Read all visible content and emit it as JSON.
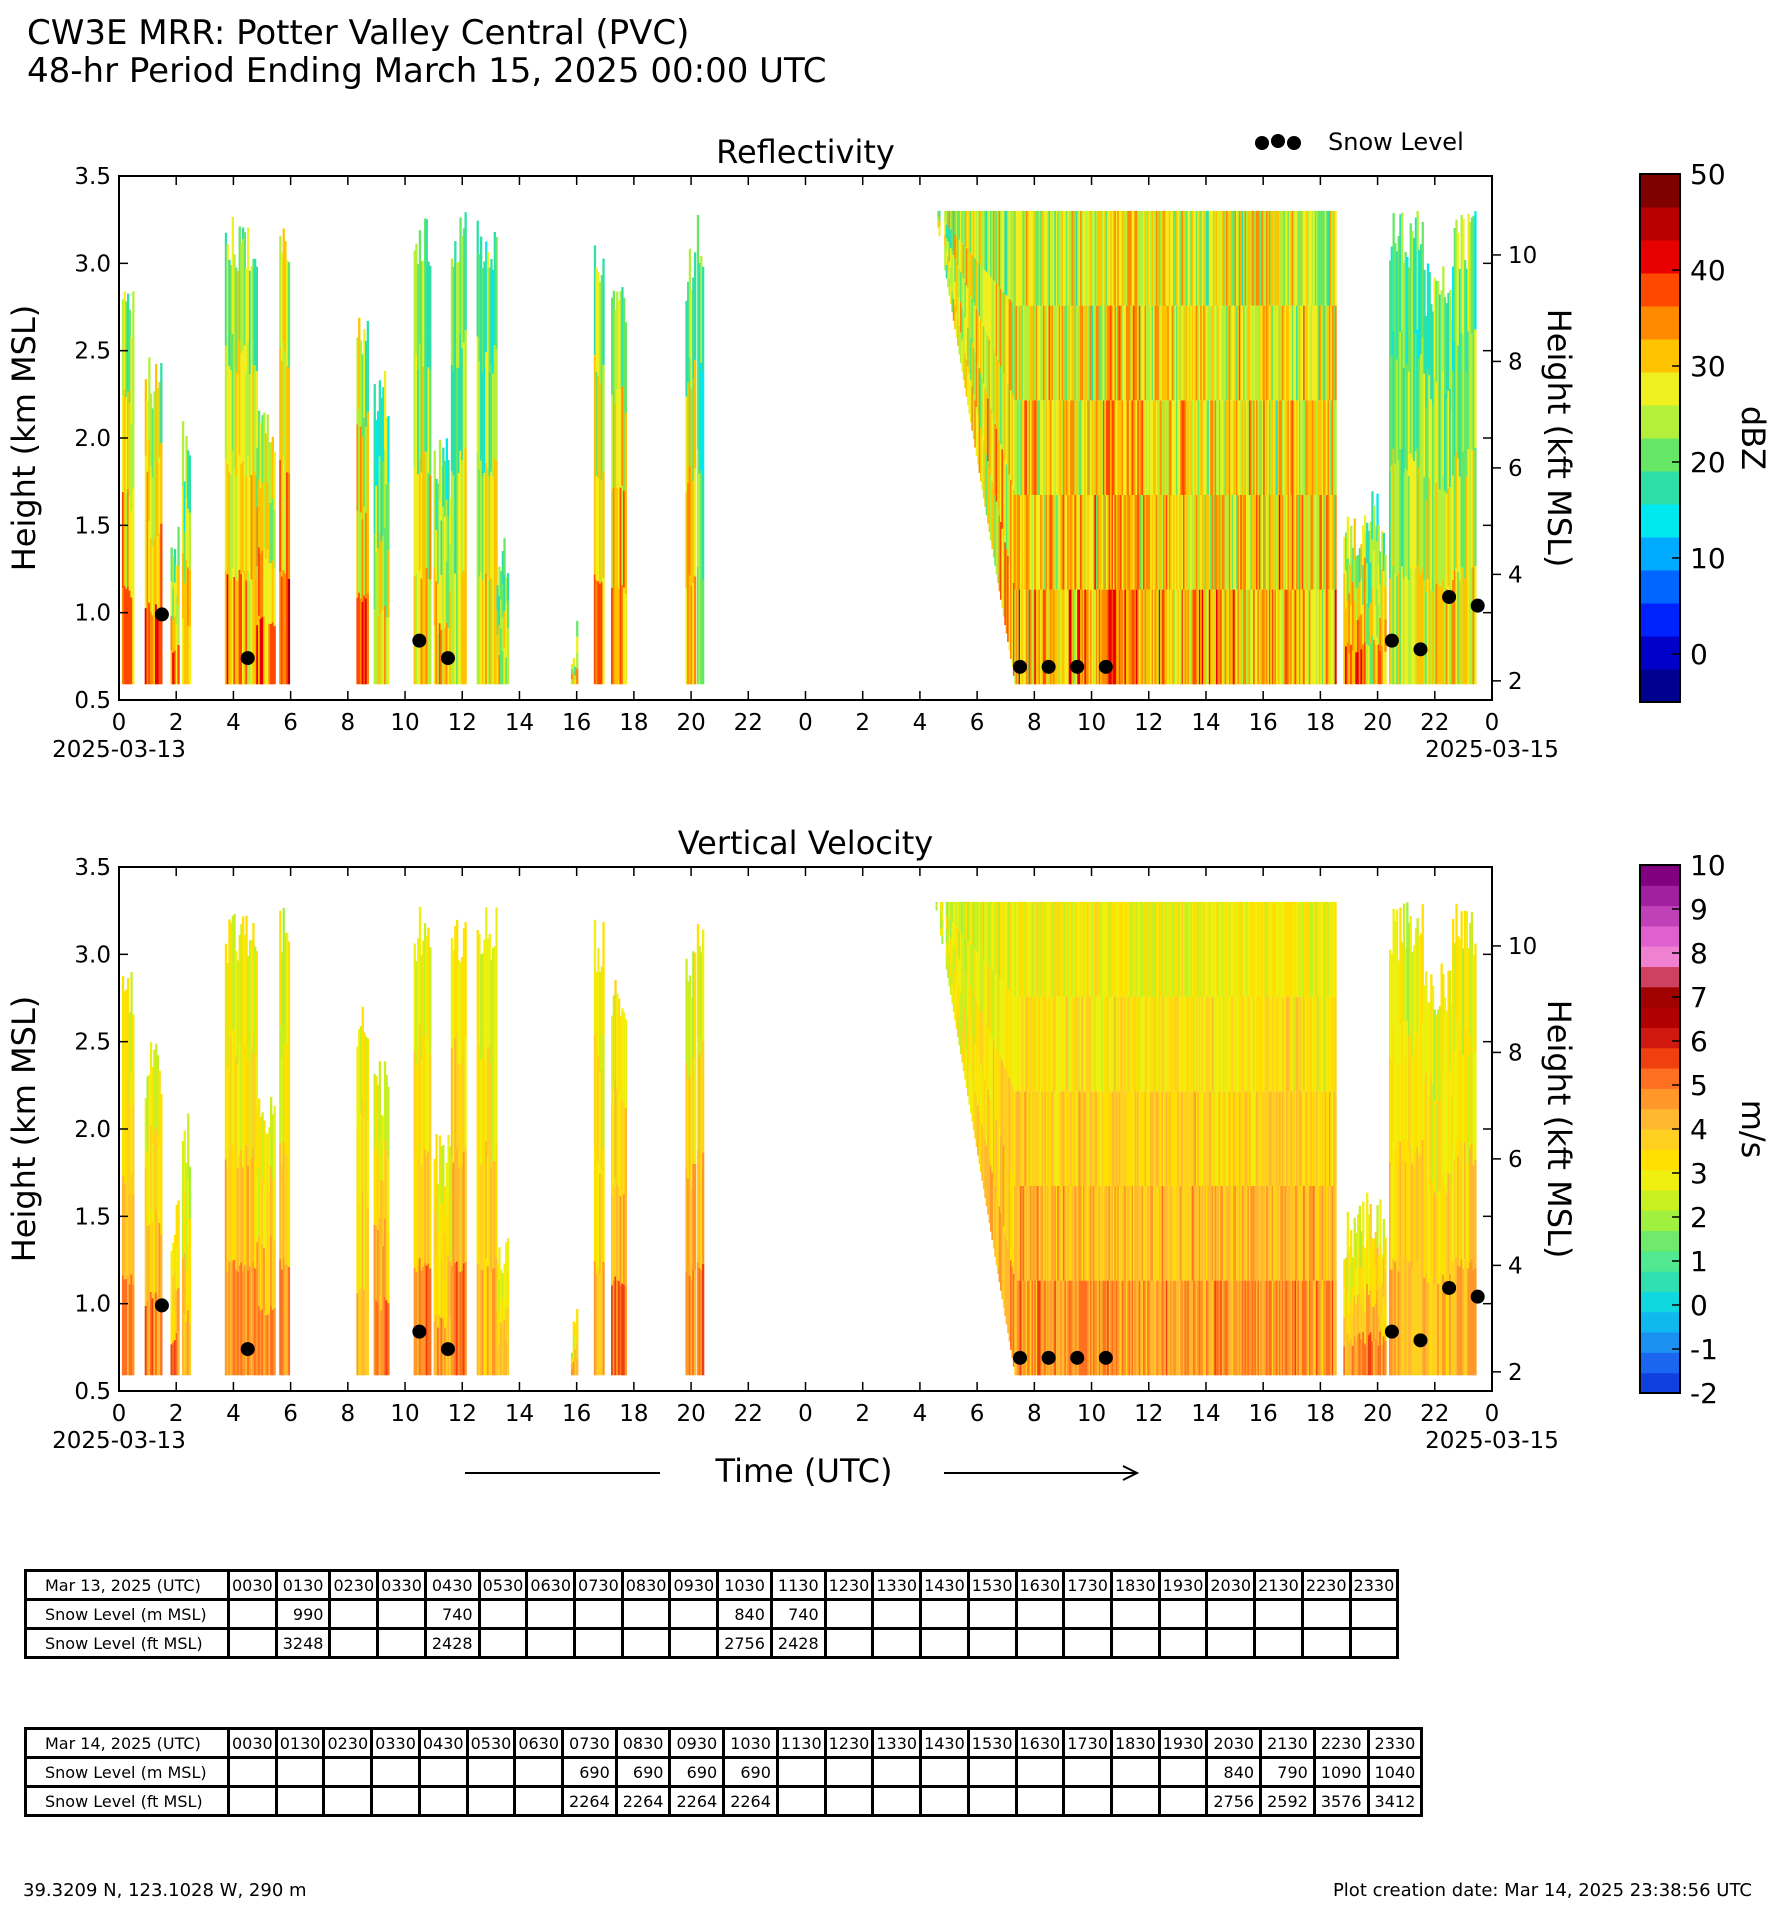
{
  "figure": {
    "title_line1": "CW3E MRR: Potter Valley Central (PVC)",
    "title_line2": "48-hr Period Ending March 15, 2025 00:00 UTC",
    "legend_label": "Snow Level",
    "xaxis_title": "Time (UTC)",
    "footer_left": "39.3209 N, 123.1028 W, 290 m",
    "footer_right": "Plot creation date: Mar 14, 2025 23:38:56 UTC"
  },
  "chart_data": [
    {
      "type": "heatmap",
      "title": "Reflectivity",
      "ylabel": "Height (km MSL)",
      "ylabel_right": "Height (kft MSL)",
      "ylim": [
        0.5,
        3.5
      ],
      "yticks": [
        "0.5",
        "1.0",
        "1.5",
        "2.0",
        "2.5",
        "3.0",
        "3.5"
      ],
      "yticks_right": [
        "2",
        "4",
        "6",
        "8",
        "10"
      ],
      "xlim_hours": [
        0,
        48
      ],
      "xticks": [
        "0",
        "2",
        "4",
        "6",
        "8",
        "10",
        "12",
        "14",
        "16",
        "18",
        "20",
        "22",
        "0",
        "2",
        "4",
        "6",
        "8",
        "10",
        "12",
        "14",
        "16",
        "18",
        "20",
        "22",
        "0"
      ],
      "date_labels": [
        "2025-03-13",
        "2025-03-15"
      ],
      "colorbar": {
        "label": "dBZ",
        "range": [
          -5,
          50
        ],
        "ticks": [
          "0",
          "10",
          "20",
          "30",
          "40",
          "50"
        ],
        "colors": [
          "#00008f",
          "#0000c8",
          "#0022ff",
          "#0066ff",
          "#00aaff",
          "#00e8f0",
          "#2ee0a6",
          "#66e866",
          "#b4f03a",
          "#f0f020",
          "#ffc400",
          "#ff8a00",
          "#ff4800",
          "#e80000",
          "#b80000",
          "#800000"
        ]
      },
      "snow_level_points": [
        {
          "hour": 1.5,
          "km": 0.99
        },
        {
          "hour": 4.5,
          "km": 0.74
        },
        {
          "hour": 10.5,
          "km": 0.84
        },
        {
          "hour": 11.5,
          "km": 0.74
        },
        {
          "hour": 31.5,
          "km": 0.69
        },
        {
          "hour": 32.5,
          "km": 0.69
        },
        {
          "hour": 33.5,
          "km": 0.69
        },
        {
          "hour": 34.5,
          "km": 0.69
        },
        {
          "hour": 44.5,
          "km": 0.84
        },
        {
          "hour": 45.5,
          "km": 0.79
        },
        {
          "hour": 46.5,
          "km": 1.09
        },
        {
          "hour": 47.5,
          "km": 1.04
        }
      ]
    },
    {
      "type": "heatmap",
      "title": "Vertical Velocity",
      "ylabel": "Height (km MSL)",
      "ylabel_right": "Height (kft MSL)",
      "ylim": [
        0.5,
        3.5
      ],
      "yticks": [
        "0.5",
        "1.0",
        "1.5",
        "2.0",
        "2.5",
        "3.0",
        "3.5"
      ],
      "yticks_right": [
        "2",
        "4",
        "6",
        "8",
        "10"
      ],
      "xlim_hours": [
        0,
        48
      ],
      "xticks": [
        "0",
        "2",
        "4",
        "6",
        "8",
        "10",
        "12",
        "14",
        "16",
        "18",
        "20",
        "22",
        "0",
        "2",
        "4",
        "6",
        "8",
        "10",
        "12",
        "14",
        "16",
        "18",
        "20",
        "22",
        "0"
      ],
      "date_labels": [
        "2025-03-13",
        "2025-03-15"
      ],
      "colorbar": {
        "label": "m/s",
        "range": [
          -2,
          10
        ],
        "ticks": [
          "-2",
          "-1",
          "0",
          "1",
          "2",
          "3",
          "4",
          "5",
          "6",
          "7",
          "8",
          "9",
          "10"
        ],
        "colors": [
          "#1040e0",
          "#1a66f0",
          "#1a90f0",
          "#10b8f0",
          "#10d8e0",
          "#30e0b0",
          "#50e890",
          "#70ea6a",
          "#a0f040",
          "#c8f020",
          "#f0f010",
          "#ffe000",
          "#ffd020",
          "#ffb830",
          "#ff9828",
          "#ff7020",
          "#f04010",
          "#d01810",
          "#b00000",
          "#a00000",
          "#d04060",
          "#f080d0",
          "#e060d0",
          "#c040b8",
          "#a020a0",
          "#800080"
        ]
      },
      "snow_level_points": [
        {
          "hour": 1.5,
          "km": 0.99
        },
        {
          "hour": 4.5,
          "km": 0.74
        },
        {
          "hour": 10.5,
          "km": 0.84
        },
        {
          "hour": 11.5,
          "km": 0.74
        },
        {
          "hour": 31.5,
          "km": 0.69
        },
        {
          "hour": 32.5,
          "km": 0.69
        },
        {
          "hour": 33.5,
          "km": 0.69
        },
        {
          "hour": 34.5,
          "km": 0.69
        },
        {
          "hour": 44.5,
          "km": 0.84
        },
        {
          "hour": 45.5,
          "km": 0.79
        },
        {
          "hour": 46.5,
          "km": 1.09
        },
        {
          "hour": 47.5,
          "km": 1.04
        }
      ]
    },
    {
      "type": "table",
      "title": "Mar 13, 2025 (UTC)",
      "columns": [
        "0030",
        "0130",
        "0230",
        "0330",
        "0430",
        "0530",
        "0630",
        "0730",
        "0830",
        "0930",
        "1030",
        "1130",
        "1230",
        "1330",
        "1430",
        "1530",
        "1630",
        "1730",
        "1830",
        "1930",
        "2030",
        "2130",
        "2230",
        "2330"
      ],
      "rows": [
        {
          "label": "Snow Level (m MSL)",
          "values": [
            "",
            "990",
            "",
            "",
            "740",
            "",
            "",
            "",
            "",
            "",
            "840",
            "740",
            "",
            "",
            "",
            "",
            "",
            "",
            "",
            "",
            "",
            "",
            "",
            ""
          ]
        },
        {
          "label": "Snow Level (ft MSL)",
          "values": [
            "",
            "3248",
            "",
            "",
            "2428",
            "",
            "",
            "",
            "",
            "",
            "2756",
            "2428",
            "",
            "",
            "",
            "",
            "",
            "",
            "",
            "",
            "",
            "",
            "",
            ""
          ]
        }
      ]
    },
    {
      "type": "table",
      "title": "Mar 14, 2025 (UTC)",
      "columns": [
        "0030",
        "0130",
        "0230",
        "0330",
        "0430",
        "0530",
        "0630",
        "0730",
        "0830",
        "0930",
        "1030",
        "1130",
        "1230",
        "1330",
        "1430",
        "1530",
        "1630",
        "1730",
        "1830",
        "1930",
        "2030",
        "2130",
        "2230",
        "2330"
      ],
      "rows": [
        {
          "label": "Snow Level (m MSL)",
          "values": [
            "",
            "",
            "",
            "",
            "",
            "",
            "",
            "690",
            "690",
            "690",
            "690",
            "",
            "",
            "",
            "",
            "",
            "",
            "",
            "",
            "",
            "840",
            "790",
            "1090",
            "1040"
          ]
        },
        {
          "label": "Snow Level (ft MSL)",
          "values": [
            "",
            "",
            "",
            "",
            "",
            "",
            "",
            "2264",
            "2264",
            "2264",
            "2264",
            "",
            "",
            "",
            "",
            "",
            "",
            "",
            "",
            "",
            "2756",
            "2592",
            "3576",
            "3412"
          ]
        }
      ]
    }
  ]
}
